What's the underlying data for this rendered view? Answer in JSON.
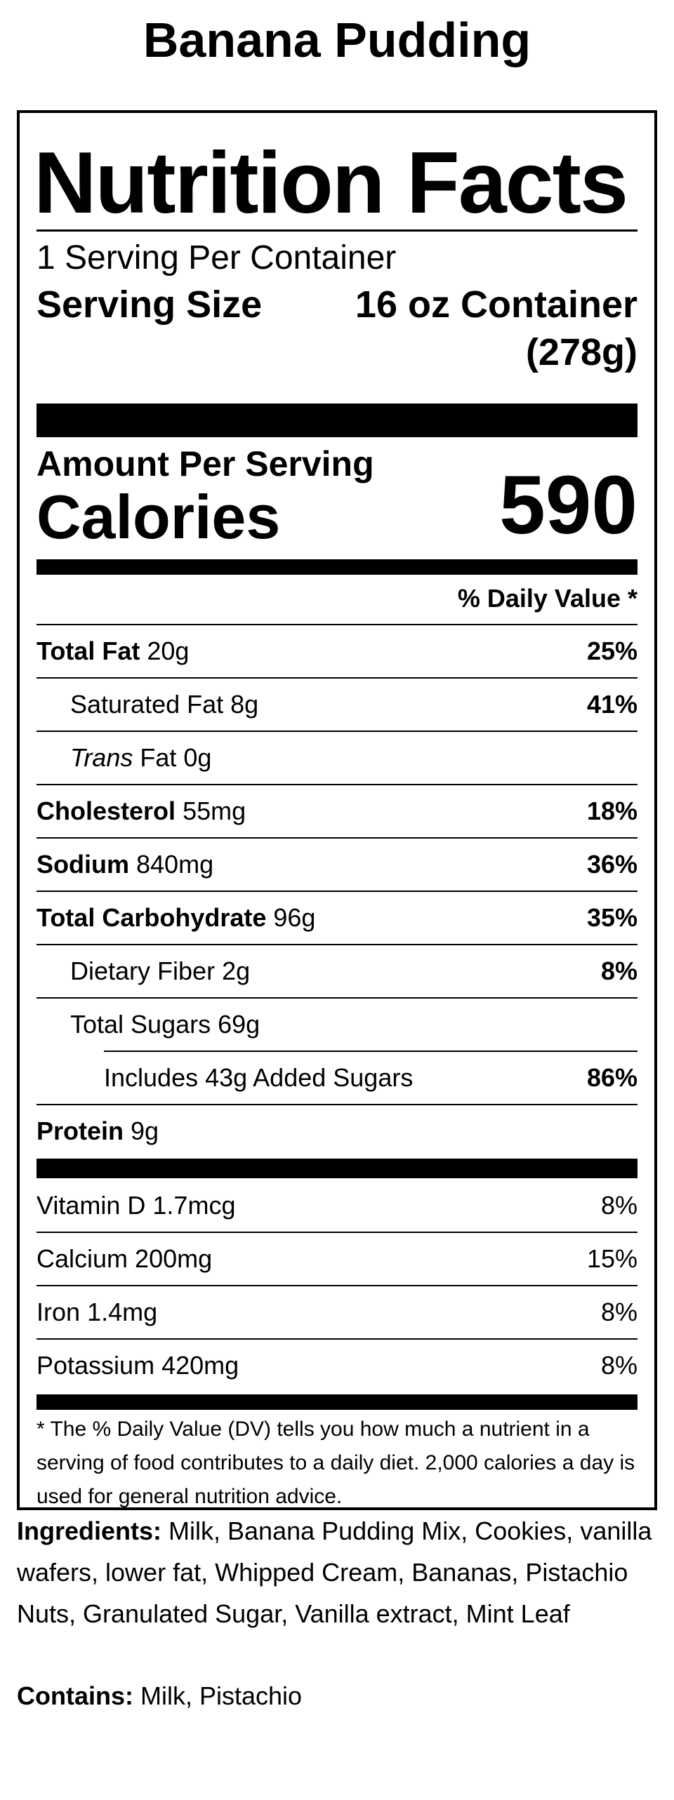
{
  "product_title": "Banana Pudding",
  "label": {
    "title": "Nutrition Facts",
    "servings_per_container": "1 Serving Per Container",
    "serving_size_label": "Serving Size",
    "serving_size_value": "16 oz Container",
    "serving_size_weight": "(278g)",
    "amount_per_serving": "Amount Per Serving",
    "calories_label": "Calories",
    "calories_value": "590",
    "dv_header": "% Daily Value *",
    "nutrients": [
      {
        "name": "Total Fat",
        "amount": "20g",
        "dv": "25%"
      },
      {
        "name": "Saturated Fat",
        "amount": "8g",
        "dv": "41%"
      },
      {
        "name_italic": "Trans",
        "name": "Fat",
        "amount": "0g",
        "dv": ""
      },
      {
        "name": "Cholesterol",
        "amount": "55mg",
        "dv": "18%"
      },
      {
        "name": "Sodium",
        "amount": "840mg",
        "dv": "36%"
      },
      {
        "name": "Total Carbohydrate",
        "amount": "96g",
        "dv": "35%"
      },
      {
        "name": "Dietary Fiber",
        "amount": "2g",
        "dv": "8%"
      },
      {
        "name": "Total Sugars",
        "amount": "69g",
        "dv": ""
      },
      {
        "name": "Includes 43g Added Sugars",
        "amount": "",
        "dv": "86%"
      },
      {
        "name": "Protein",
        "amount": "9g",
        "dv": ""
      }
    ],
    "vitamins": [
      {
        "name": "Vitamin D",
        "amount": "1.7mcg",
        "dv": "8%"
      },
      {
        "name": "Calcium",
        "amount": "200mg",
        "dv": "15%"
      },
      {
        "name": "Iron",
        "amount": "1.4mg",
        "dv": "8%"
      },
      {
        "name": "Potassium",
        "amount": "420mg",
        "dv": "8%"
      }
    ],
    "footnote": "* The % Daily Value (DV) tells you how much a nutrient in a serving of food contributes to a daily diet. 2,000 calories a day is used for general nutrition advice."
  },
  "ingredients": {
    "label": "Ingredients:",
    "text": "Milk, Banana Pudding Mix, Cookies, vanilla wafers, lower fat, Whipped Cream, Bananas, Pistachio Nuts, Granulated Sugar, Vanilla extract, Mint Leaf"
  },
  "contains": {
    "label": "Contains:",
    "text": "Milk, Pistachio"
  }
}
